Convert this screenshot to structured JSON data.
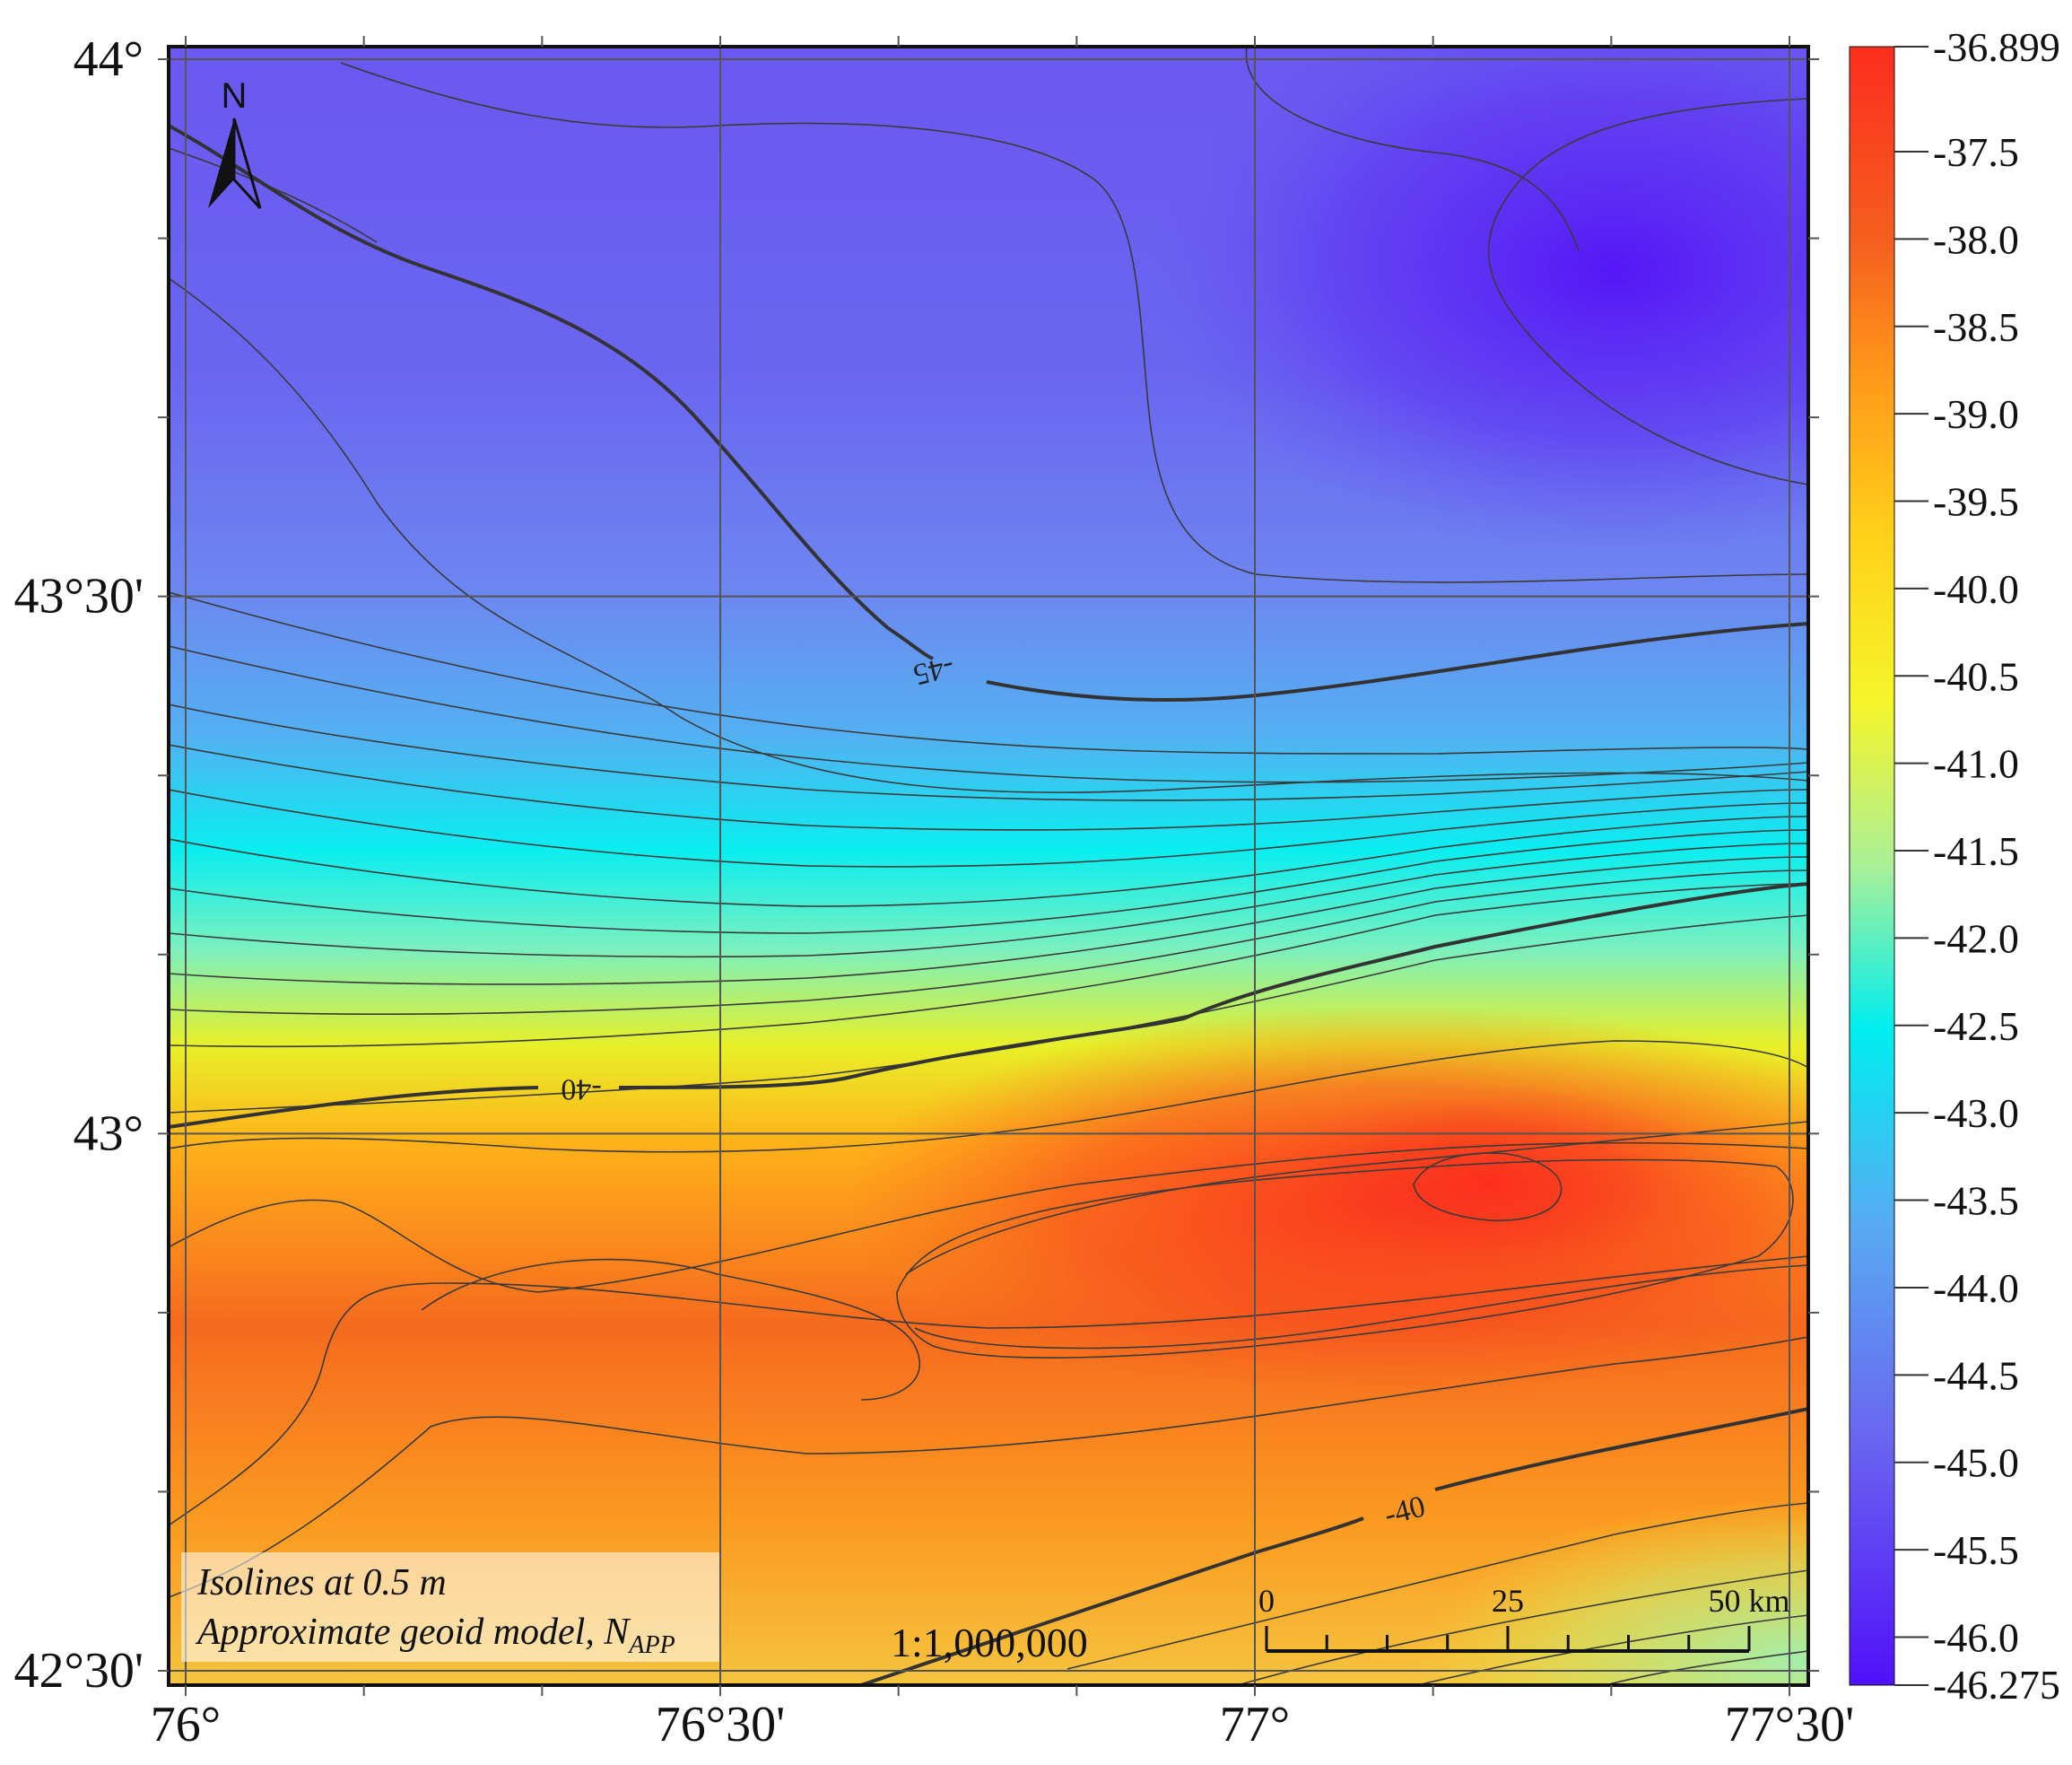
{
  "map": {
    "x_ticks": [
      {
        "lon": 76.0,
        "label": "76°"
      },
      {
        "lon": 76.5,
        "label": "76°30'"
      },
      {
        "lon": 77.0,
        "label": "77°"
      },
      {
        "lon": 77.5,
        "label": "77°30'"
      }
    ],
    "y_ticks": [
      {
        "lat": 44.0,
        "label": "44°"
      },
      {
        "lat": 43.5,
        "label": "43°30'"
      },
      {
        "lat": 43.0,
        "label": "43°"
      },
      {
        "lat": 42.5,
        "label": "42°30'"
      }
    ],
    "lon_range": [
      76.0,
      77.5
    ],
    "lat_range": [
      42.5,
      44.0
    ],
    "north_arrow_label": "N",
    "info_box": {
      "line1": "Isolines at 0.5 m",
      "line2_main": "Approximate geoid model, N",
      "line2_sub": "APP"
    },
    "scale_ratio": "1:1,000,000",
    "scale_bar": {
      "label_0": "0",
      "label_mid": "25",
      "label_end": "50 km"
    },
    "contour_labels": [
      {
        "text": "-45",
        "lon": 76.7,
        "lat": 43.43
      },
      {
        "text": "-40",
        "lon": 76.37,
        "lat": 43.04
      },
      {
        "text": "-40",
        "lon": 77.14,
        "lat": 42.65
      }
    ],
    "colors": {
      "grid": "#555555",
      "contour": "#3a3a3a",
      "ramp": [
        "#5a14f4",
        "#6a5cf2",
        "#5aa8f2",
        "#00f0f0",
        "#f0f028",
        "#ffa31c",
        "#f56a1e",
        "#fc2d1e"
      ]
    }
  },
  "colorbar": {
    "max_label": "-36.899",
    "min_label": "-46.275",
    "ticks": [
      "-37.5",
      "-38.0",
      "-38.5",
      "-39.0",
      "-39.5",
      "-40.0",
      "-40.5",
      "-41.0",
      "-41.5",
      "-42.0",
      "-42.5",
      "-43.0",
      "-43.5",
      "-44.0",
      "-44.5",
      "-45.0",
      "-45.5",
      "-46.0"
    ],
    "min": -46.275,
    "max": -36.899
  }
}
